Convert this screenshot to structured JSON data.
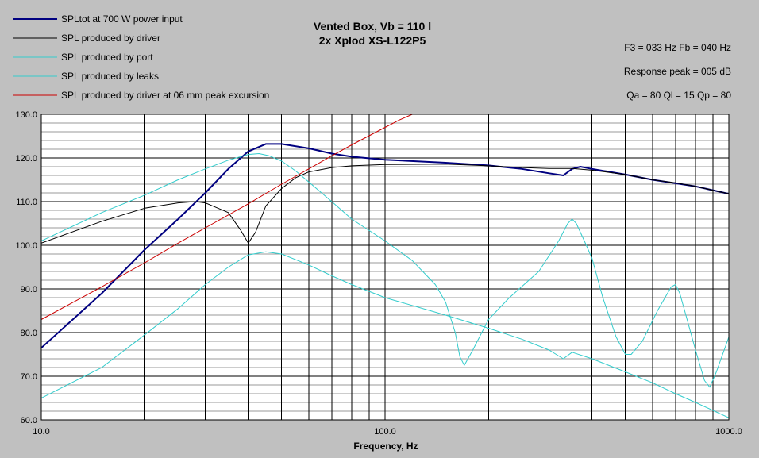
{
  "chart_data": {
    "type": "line",
    "title": "Vented Box, Vb = 110 l",
    "subtitle": "2x Xplod XS-L122P5",
    "xlabel": "Frequency, Hz",
    "ylabel": "",
    "x_scale": "log",
    "xlim": [
      10,
      1000
    ],
    "ylim": [
      60,
      130
    ],
    "grid": true,
    "legend_position": "top-left",
    "x_ticks": [
      "10.0",
      "100.0",
      "1000.0"
    ],
    "y_ticks": [
      "60.0",
      "70.0",
      "80.0",
      "90.0",
      "100.0",
      "110.0",
      "120.0",
      "130.0"
    ],
    "annotations": [
      "F3 = 033 Hz  Fb = 040 Hz",
      "Response peak = 005 dB",
      "Qa = 80  Ql = 15  Qp = 80"
    ],
    "series": [
      {
        "name": "SPLtot at 700 W power input",
        "color": "#000080",
        "width": 2,
        "points": [
          [
            10,
            76.5
          ],
          [
            15,
            89
          ],
          [
            20,
            99
          ],
          [
            25,
            106
          ],
          [
            30,
            112
          ],
          [
            35,
            117.5
          ],
          [
            40,
            121.5
          ],
          [
            45,
            123.2
          ],
          [
            50,
            123.2
          ],
          [
            60,
            122.2
          ],
          [
            70,
            121
          ],
          [
            80,
            120.3
          ],
          [
            100,
            119.6
          ],
          [
            150,
            118.9
          ],
          [
            200,
            118.3
          ],
          [
            250,
            117.5
          ],
          [
            300,
            116.5
          ],
          [
            330,
            116
          ],
          [
            350,
            117.5
          ],
          [
            370,
            118
          ],
          [
            400,
            117.5
          ],
          [
            500,
            116.2
          ],
          [
            600,
            115
          ],
          [
            700,
            114.2
          ],
          [
            800,
            113.5
          ],
          [
            1000,
            111.8
          ]
        ]
      },
      {
        "name": "SPL produced by driver",
        "color": "#000000",
        "width": 1,
        "points": [
          [
            10,
            100.5
          ],
          [
            15,
            105.5
          ],
          [
            20,
            108.5
          ],
          [
            25,
            109.7
          ],
          [
            28,
            110
          ],
          [
            30,
            109.7
          ],
          [
            35,
            107.5
          ],
          [
            38,
            103.5
          ],
          [
            40,
            100.5
          ],
          [
            42,
            103
          ],
          [
            45,
            109
          ],
          [
            50,
            113
          ],
          [
            55,
            115.5
          ],
          [
            60,
            116.8
          ],
          [
            70,
            117.8
          ],
          [
            80,
            118.2
          ],
          [
            100,
            118.5
          ],
          [
            150,
            118.6
          ],
          [
            200,
            118.2
          ],
          [
            250,
            117.8
          ],
          [
            300,
            117.6
          ],
          [
            350,
            117.6
          ],
          [
            400,
            117.2
          ],
          [
            500,
            116.2
          ],
          [
            600,
            115
          ],
          [
            700,
            114.3
          ],
          [
            800,
            113.5
          ],
          [
            1000,
            111.8
          ]
        ]
      },
      {
        "name": "SPL produced by port",
        "color": "#33cccc",
        "width": 1,
        "points": [
          [
            10,
            101
          ],
          [
            15,
            107.5
          ],
          [
            20,
            111.5
          ],
          [
            25,
            115
          ],
          [
            30,
            117.5
          ],
          [
            35,
            119.5
          ],
          [
            40,
            120.8
          ],
          [
            43,
            121
          ],
          [
            46,
            120.5
          ],
          [
            50,
            119.3
          ],
          [
            55,
            117
          ],
          [
            60,
            114.5
          ],
          [
            70,
            110
          ],
          [
            80,
            106
          ],
          [
            100,
            101
          ],
          [
            120,
            96.5
          ],
          [
            140,
            91
          ],
          [
            150,
            87
          ],
          [
            160,
            80
          ],
          [
            165,
            74.5
          ],
          [
            170,
            72.5
          ],
          [
            180,
            76
          ],
          [
            200,
            83
          ],
          [
            230,
            88
          ],
          [
            280,
            94
          ],
          [
            320,
            101
          ],
          [
            340,
            105
          ],
          [
            350,
            106
          ],
          [
            360,
            105
          ],
          [
            380,
            101
          ],
          [
            400,
            97
          ],
          [
            430,
            88
          ],
          [
            470,
            79
          ],
          [
            500,
            75
          ],
          [
            520,
            75
          ],
          [
            560,
            78
          ],
          [
            620,
            85
          ],
          [
            680,
            90.5
          ],
          [
            700,
            91
          ],
          [
            720,
            89
          ],
          [
            750,
            84
          ],
          [
            800,
            76
          ],
          [
            850,
            69
          ],
          [
            880,
            67.5
          ],
          [
            920,
            71
          ],
          [
            1000,
            79
          ]
        ]
      },
      {
        "name": "SPL produced by leaks",
        "color": "#33cccc",
        "width": 1,
        "points": [
          [
            10,
            65
          ],
          [
            15,
            72
          ],
          [
            20,
            79.5
          ],
          [
            25,
            85.5
          ],
          [
            30,
            91
          ],
          [
            35,
            95
          ],
          [
            40,
            97.8
          ],
          [
            45,
            98.5
          ],
          [
            50,
            98
          ],
          [
            60,
            95.5
          ],
          [
            70,
            93
          ],
          [
            80,
            91
          ],
          [
            100,
            88
          ],
          [
            150,
            84
          ],
          [
            200,
            81
          ],
          [
            250,
            78.5
          ],
          [
            300,
            76
          ],
          [
            330,
            74
          ],
          [
            350,
            75.5
          ],
          [
            400,
            74
          ],
          [
            500,
            71
          ],
          [
            600,
            68.5
          ],
          [
            700,
            66
          ],
          [
            800,
            64
          ],
          [
            1000,
            60.5
          ]
        ]
      },
      {
        "name": "SPL produced by driver at 06 mm peak excursion",
        "color": "#cc0000",
        "width": 1,
        "points": [
          [
            10,
            83
          ],
          [
            15,
            90.5
          ],
          [
            20,
            96
          ],
          [
            25,
            100.5
          ],
          [
            30,
            104
          ],
          [
            40,
            109.5
          ],
          [
            50,
            114
          ],
          [
            60,
            117.5
          ],
          [
            70,
            120.5
          ],
          [
            80,
            123
          ],
          [
            100,
            127
          ],
          [
            110,
            128.7
          ],
          [
            120,
            130
          ]
        ]
      }
    ]
  }
}
